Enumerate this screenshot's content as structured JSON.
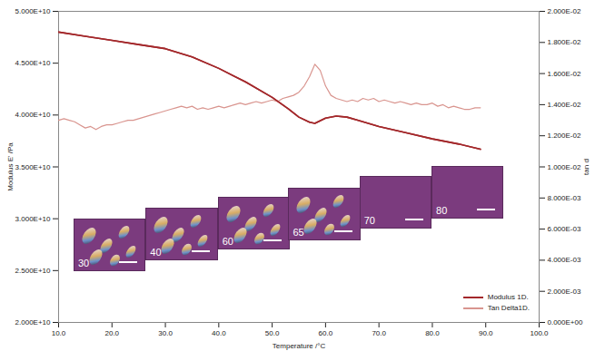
{
  "chart_data": {
    "type": "line",
    "xlabel": "Temperature /°C",
    "ylabel": "Modulus E' /Pa",
    "y2label": "tan d",
    "xlim": [
      10,
      100
    ],
    "xticks": [
      {
        "value": 10,
        "label": "10.0"
      },
      {
        "value": 20,
        "label": "20.0"
      },
      {
        "value": 30,
        "label": "30.0"
      },
      {
        "value": 40,
        "label": "40.0"
      },
      {
        "value": 50,
        "label": "50.0"
      },
      {
        "value": 60,
        "label": "60.0"
      },
      {
        "value": 70,
        "label": "70.0"
      },
      {
        "value": 80,
        "label": "80.0"
      },
      {
        "value": 90,
        "label": "90.0"
      },
      {
        "value": 100,
        "label": "100.0"
      }
    ],
    "ylim": [
      20000000000.0,
      50000000000.0
    ],
    "yticks": [
      {
        "value": 20000000000.0,
        "label": "2.000E+10"
      },
      {
        "value": 25000000000.0,
        "label": "2.500E+10"
      },
      {
        "value": 30000000000.0,
        "label": "3.000E+10"
      },
      {
        "value": 35000000000.0,
        "label": "3.500E+10"
      },
      {
        "value": 40000000000.0,
        "label": "4.000E+10"
      },
      {
        "value": 45000000000.0,
        "label": "4.500E+10"
      },
      {
        "value": 50000000000.0,
        "label": "5.000E+10"
      }
    ],
    "y2lim": [
      0,
      0.02
    ],
    "y2ticks": [
      {
        "value": 0,
        "label": "0.000E+00"
      },
      {
        "value": 0.002,
        "label": "2.000E-03"
      },
      {
        "value": 0.004,
        "label": "4.000E-03"
      },
      {
        "value": 0.006,
        "label": "6.000E-03"
      },
      {
        "value": 0.008,
        "label": "8.000E-03"
      },
      {
        "value": 0.01,
        "label": "1.000E-02"
      },
      {
        "value": 0.012,
        "label": "1.200E-02"
      },
      {
        "value": 0.014,
        "label": "1.400E-02"
      },
      {
        "value": 0.016,
        "label": "1.600E-02"
      },
      {
        "value": 0.018,
        "label": "1.800E-02"
      },
      {
        "value": 0.02,
        "label": "2.000E-02"
      }
    ],
    "grid": false,
    "legend": "lower right",
    "annotations": [
      "30",
      "40",
      "60",
      "65",
      "70",
      "80"
    ],
    "series": [
      {
        "name": "Modulus 1D.",
        "color": "#a3282b",
        "axis": "y",
        "x": [
          10,
          15,
          20,
          25,
          30,
          35,
          40,
          45,
          50,
          53,
          55,
          57,
          58,
          60,
          62,
          64,
          66,
          70,
          75,
          80,
          85,
          89
        ],
        "values": [
          48000000000.0,
          47600000000.0,
          47200000000.0,
          46800000000.0,
          46400000000.0,
          45600000000.0,
          44500000000.0,
          43200000000.0,
          41700000000.0,
          40600000000.0,
          39800000000.0,
          39300000000.0,
          39200000000.0,
          39700000000.0,
          39900000000.0,
          39800000000.0,
          39500000000.0,
          38900000000.0,
          38300000000.0,
          37700000000.0,
          37200000000.0,
          36700000000.0
        ]
      },
      {
        "name": "Tan Delta1D.",
        "color": "#d9958f",
        "axis": "y2",
        "x": [
          10,
          11,
          12,
          13,
          14,
          15,
          16,
          17,
          18,
          19,
          20,
          21,
          22,
          23,
          24,
          25,
          26,
          27,
          28,
          29,
          30,
          31,
          32,
          33,
          34,
          35,
          36,
          37,
          38,
          39,
          40,
          41,
          42,
          43,
          44,
          45,
          46,
          47,
          48,
          49,
          50,
          51,
          52,
          53,
          54,
          55,
          56,
          57,
          58,
          59,
          60,
          61,
          62,
          63,
          64,
          65,
          66,
          67,
          68,
          69,
          70,
          71,
          72,
          73,
          74,
          75,
          76,
          77,
          78,
          79,
          80,
          81,
          82,
          83,
          84,
          85,
          86,
          87,
          88,
          89
        ],
        "values": [
          0.013,
          0.0131,
          0.013,
          0.0129,
          0.0127,
          0.0125,
          0.0126,
          0.0124,
          0.0126,
          0.0127,
          0.0127,
          0.0128,
          0.0129,
          0.013,
          0.013,
          0.0131,
          0.0132,
          0.0133,
          0.0134,
          0.0135,
          0.0136,
          0.0137,
          0.0138,
          0.0139,
          0.0138,
          0.0139,
          0.0137,
          0.0138,
          0.0137,
          0.0138,
          0.0139,
          0.0138,
          0.0139,
          0.014,
          0.0141,
          0.014,
          0.0141,
          0.0142,
          0.0141,
          0.0142,
          0.0143,
          0.0142,
          0.0144,
          0.0145,
          0.0146,
          0.0148,
          0.0152,
          0.0158,
          0.0166,
          0.0162,
          0.0152,
          0.0146,
          0.0144,
          0.0143,
          0.0142,
          0.0143,
          0.0142,
          0.0144,
          0.0143,
          0.0144,
          0.0142,
          0.0143,
          0.0142,
          0.0141,
          0.0142,
          0.0141,
          0.014,
          0.0141,
          0.014,
          0.014,
          0.0141,
          0.0139,
          0.014,
          0.0138,
          0.0139,
          0.0138,
          0.0137,
          0.0137,
          0.0138,
          0.0138
        ]
      }
    ]
  }
}
